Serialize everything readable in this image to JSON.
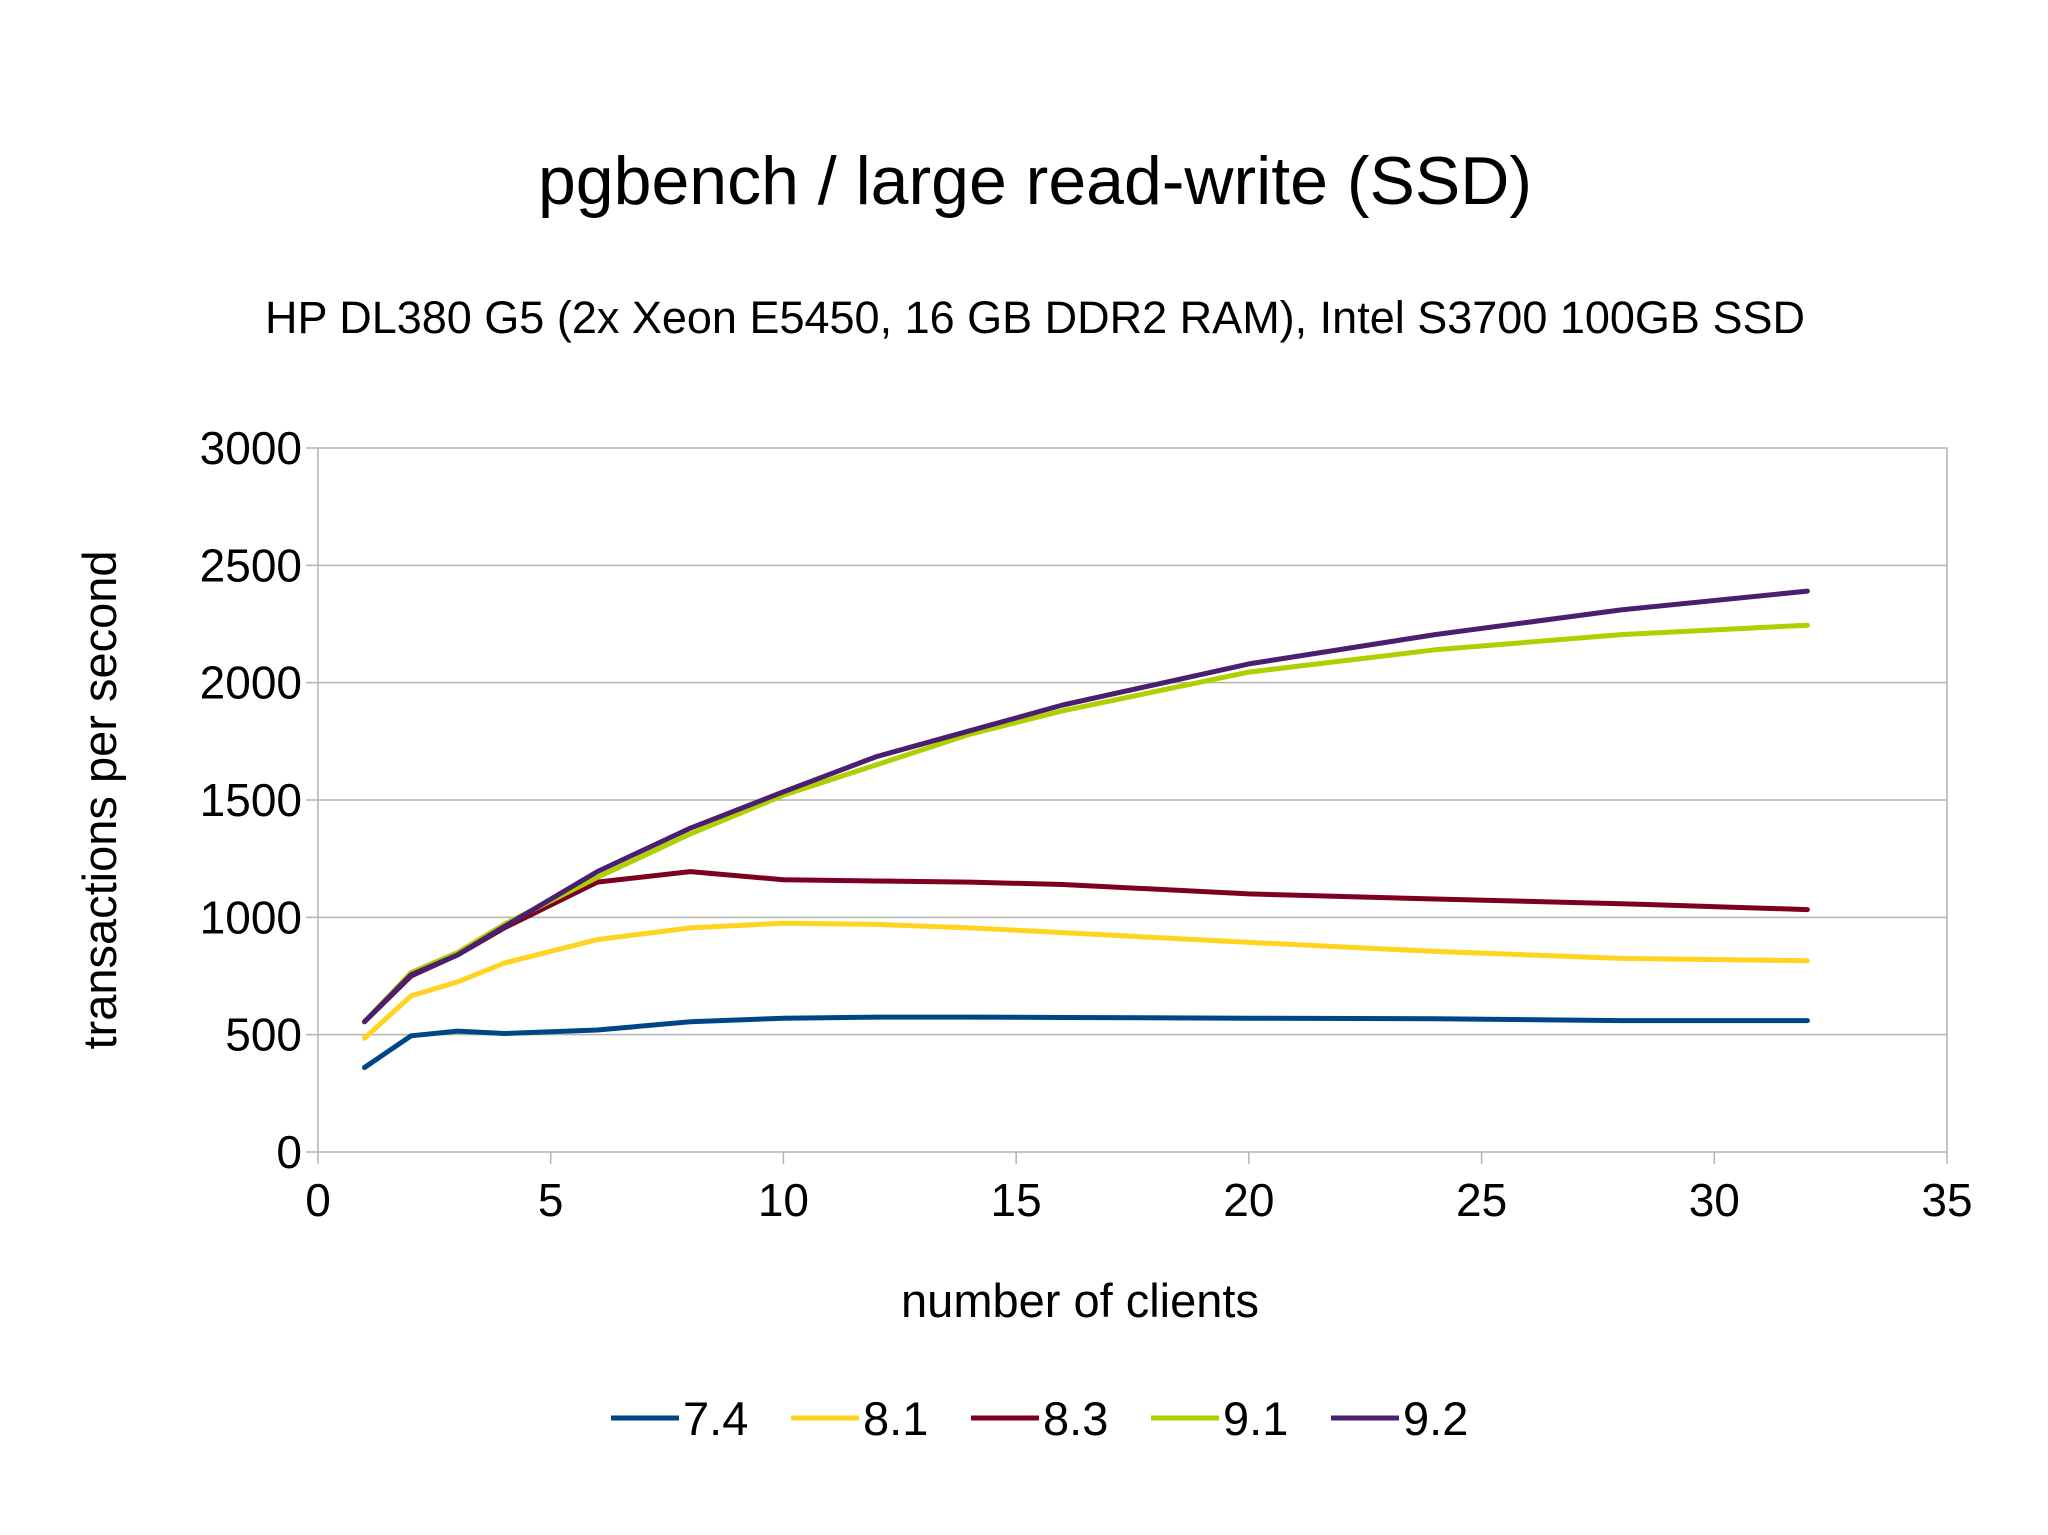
{
  "chart_data": {
    "type": "line",
    "title": "pgbench / large read-write (SSD)",
    "subtitle": "HP DL380 G5 (2x Xeon E5450, 16 GB DDR2 RAM), Intel S3700 100GB SSD",
    "xlabel": "number of clients",
    "ylabel": "transactions per second",
    "xlim": [
      0,
      35
    ],
    "ylim": [
      0,
      3000
    ],
    "xticks": [
      0,
      5,
      10,
      15,
      20,
      25,
      30,
      35
    ],
    "yticks": [
      0,
      500,
      1000,
      1500,
      2000,
      2500,
      3000
    ],
    "grid": "horizontal",
    "legend": "bottom",
    "x": [
      1,
      2,
      3,
      4,
      6,
      8,
      10,
      12,
      14,
      16,
      20,
      24,
      28,
      32
    ],
    "series": [
      {
        "name": "7.4",
        "color": "#004586",
        "values": [
          360,
          495,
          515,
          505,
          520,
          555,
          570,
          575,
          575,
          573,
          570,
          568,
          560,
          560
        ]
      },
      {
        "name": "8.1",
        "color": "#ffd320",
        "values": [
          485,
          665,
          725,
          805,
          905,
          955,
          975,
          970,
          955,
          935,
          893,
          855,
          825,
          815
        ]
      },
      {
        "name": "8.3",
        "color": "#7e0021",
        "values": [
          555,
          750,
          840,
          955,
          1150,
          1195,
          1160,
          1155,
          1150,
          1140,
          1100,
          1078,
          1058,
          1033
        ]
      },
      {
        "name": "9.1",
        "color": "#aecf00",
        "values": [
          555,
          765,
          850,
          970,
          1170,
          1355,
          1520,
          1650,
          1780,
          1880,
          2045,
          2140,
          2205,
          2245
        ]
      },
      {
        "name": "9.2",
        "color": "#4b1f6f",
        "values": [
          555,
          755,
          840,
          960,
          1195,
          1380,
          1535,
          1685,
          1795,
          1905,
          2080,
          2205,
          2310,
          2390
        ]
      }
    ]
  }
}
